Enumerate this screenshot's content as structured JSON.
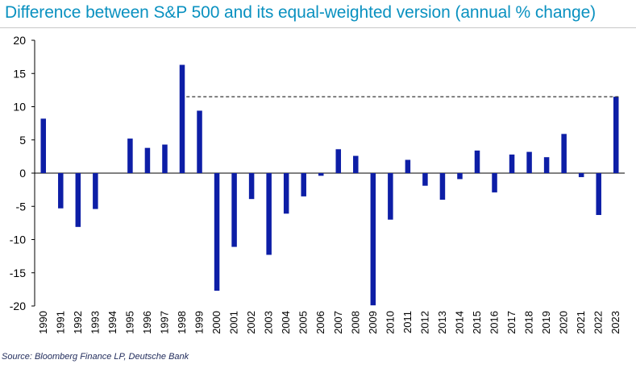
{
  "title": "Difference between S&P 500 and its equal-weighted version (annual % change)",
  "source": "Source: Bloomberg Finance LP, Deutsche Bank",
  "colors": {
    "bar": "#0d1ea6",
    "title": "#0a91c0",
    "reference_line": "#333333"
  },
  "chart_data": {
    "type": "bar",
    "title": "Difference between S&P 500 and its equal-weighted version (annual % change)",
    "xlabel": "",
    "ylabel": "",
    "ylim": [
      -20,
      20
    ],
    "yticks": [
      20,
      15,
      10,
      5,
      0,
      -5,
      -10,
      -15,
      -20
    ],
    "grid": false,
    "legend": "none",
    "categories": [
      "1990",
      "1991",
      "1992",
      "1993",
      "1994",
      "1995",
      "1996",
      "1997",
      "1998",
      "1999",
      "2000",
      "2001",
      "2002",
      "2003",
      "2004",
      "2005",
      "2006",
      "2007",
      "2008",
      "2009",
      "2010",
      "2011",
      "2012",
      "2013",
      "2014",
      "2015",
      "2016",
      "2017",
      "2018",
      "2019",
      "2020",
      "2021",
      "2022",
      "2023"
    ],
    "values": [
      8.2,
      -5.3,
      -8.1,
      -5.4,
      0.0,
      5.2,
      3.8,
      4.3,
      16.3,
      9.4,
      -17.7,
      -11.1,
      -3.9,
      -12.3,
      -6.1,
      -3.5,
      -0.4,
      3.6,
      2.6,
      -19.9,
      -7.0,
      2.0,
      -1.9,
      -4.0,
      -0.9,
      3.4,
      -2.9,
      2.8,
      3.2,
      2.4,
      5.9,
      -0.6,
      -6.3,
      11.5
    ],
    "reference_line": {
      "value": 11.5,
      "from": "1998",
      "to": "2023",
      "style": "dashed"
    }
  }
}
